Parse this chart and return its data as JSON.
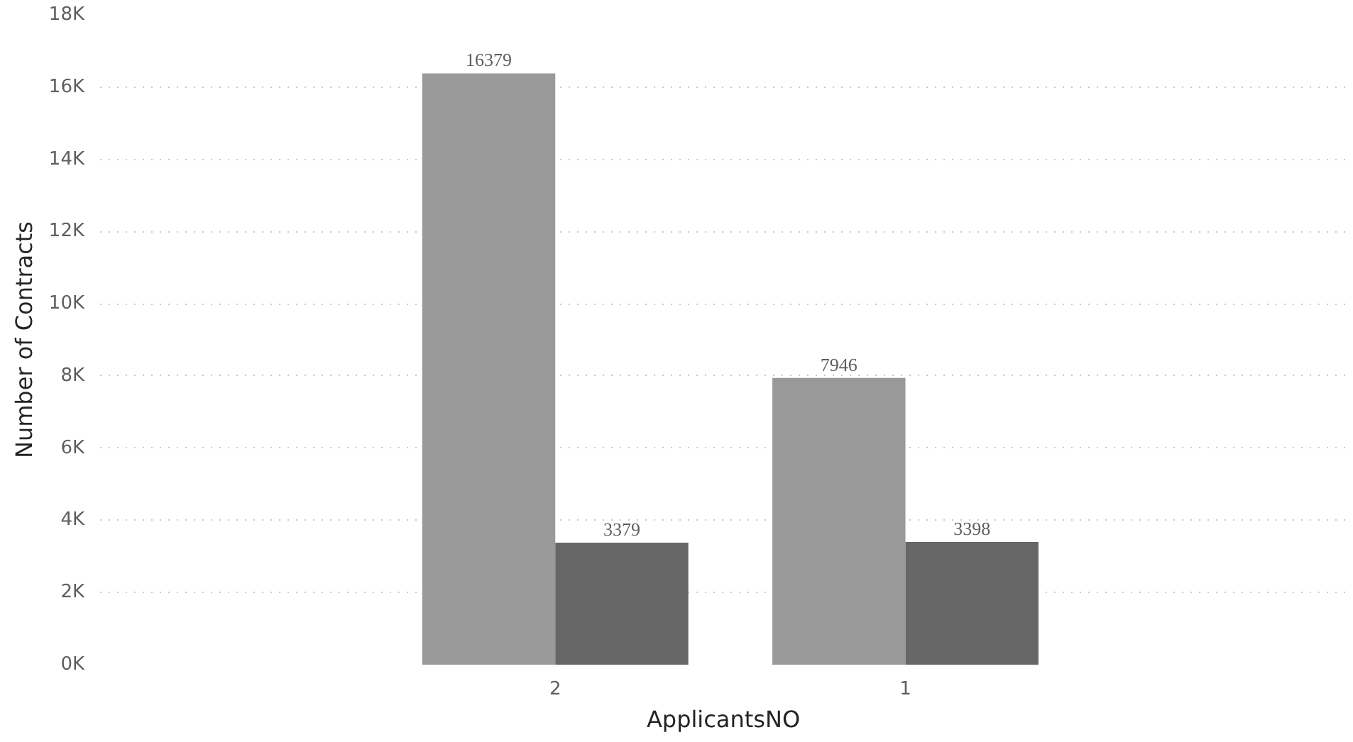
{
  "chart_data": {
    "type": "bar",
    "xlabel": "ApplicantsNO",
    "ylabel": "Number of Contracts",
    "categories": [
      "2",
      "1"
    ],
    "series": [
      {
        "color": "#999999",
        "values": [
          16379,
          7946
        ]
      },
      {
        "color": "#666666",
        "values": [
          3379,
          3398
        ]
      }
    ],
    "ylim": [
      0,
      18000
    ],
    "yticks": [
      {
        "value": 0,
        "label": "0K"
      },
      {
        "value": 2000,
        "label": "2K"
      },
      {
        "value": 4000,
        "label": "4K"
      },
      {
        "value": 6000,
        "label": "6K"
      },
      {
        "value": 8000,
        "label": "8K"
      },
      {
        "value": 10000,
        "label": "10K"
      },
      {
        "value": 12000,
        "label": "12K"
      },
      {
        "value": 14000,
        "label": "14K"
      },
      {
        "value": 16000,
        "label": "16K"
      },
      {
        "value": 18000,
        "label": "18K"
      }
    ],
    "grid": "y",
    "data_labels": true
  }
}
